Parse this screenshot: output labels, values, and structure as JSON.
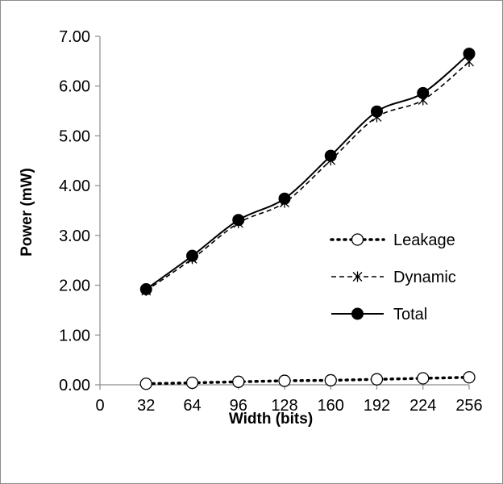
{
  "chart_data": {
    "type": "line",
    "title": "",
    "xlabel": "Width (bits)",
    "ylabel": "Power (mW)",
    "xlim": [
      0,
      256
    ],
    "ylim": [
      0,
      7
    ],
    "x_ticks": [
      "0",
      "32",
      "64",
      "96",
      "128",
      "160",
      "192",
      "224",
      "256"
    ],
    "y_ticks": [
      "0.00",
      "1.00",
      "2.00",
      "3.00",
      "4.00",
      "5.00",
      "6.00",
      "7.00"
    ],
    "grid": false,
    "legend_position": "right",
    "x": [
      32,
      64,
      96,
      128,
      160,
      192,
      224,
      256
    ],
    "series": [
      {
        "name": "Leakage",
        "style": "dotted line, open circle markers",
        "values": [
          0.02,
          0.04,
          0.06,
          0.08,
          0.09,
          0.11,
          0.13,
          0.15
        ]
      },
      {
        "name": "Dynamic",
        "style": "dashed line, asterisk markers",
        "values": [
          1.89,
          2.53,
          3.25,
          3.66,
          4.51,
          5.38,
          5.72,
          6.49
        ]
      },
      {
        "name": "Total",
        "style": "solid line, filled circle markers",
        "values": [
          1.92,
          2.59,
          3.31,
          3.74,
          4.6,
          5.49,
          5.86,
          6.65
        ]
      }
    ]
  }
}
